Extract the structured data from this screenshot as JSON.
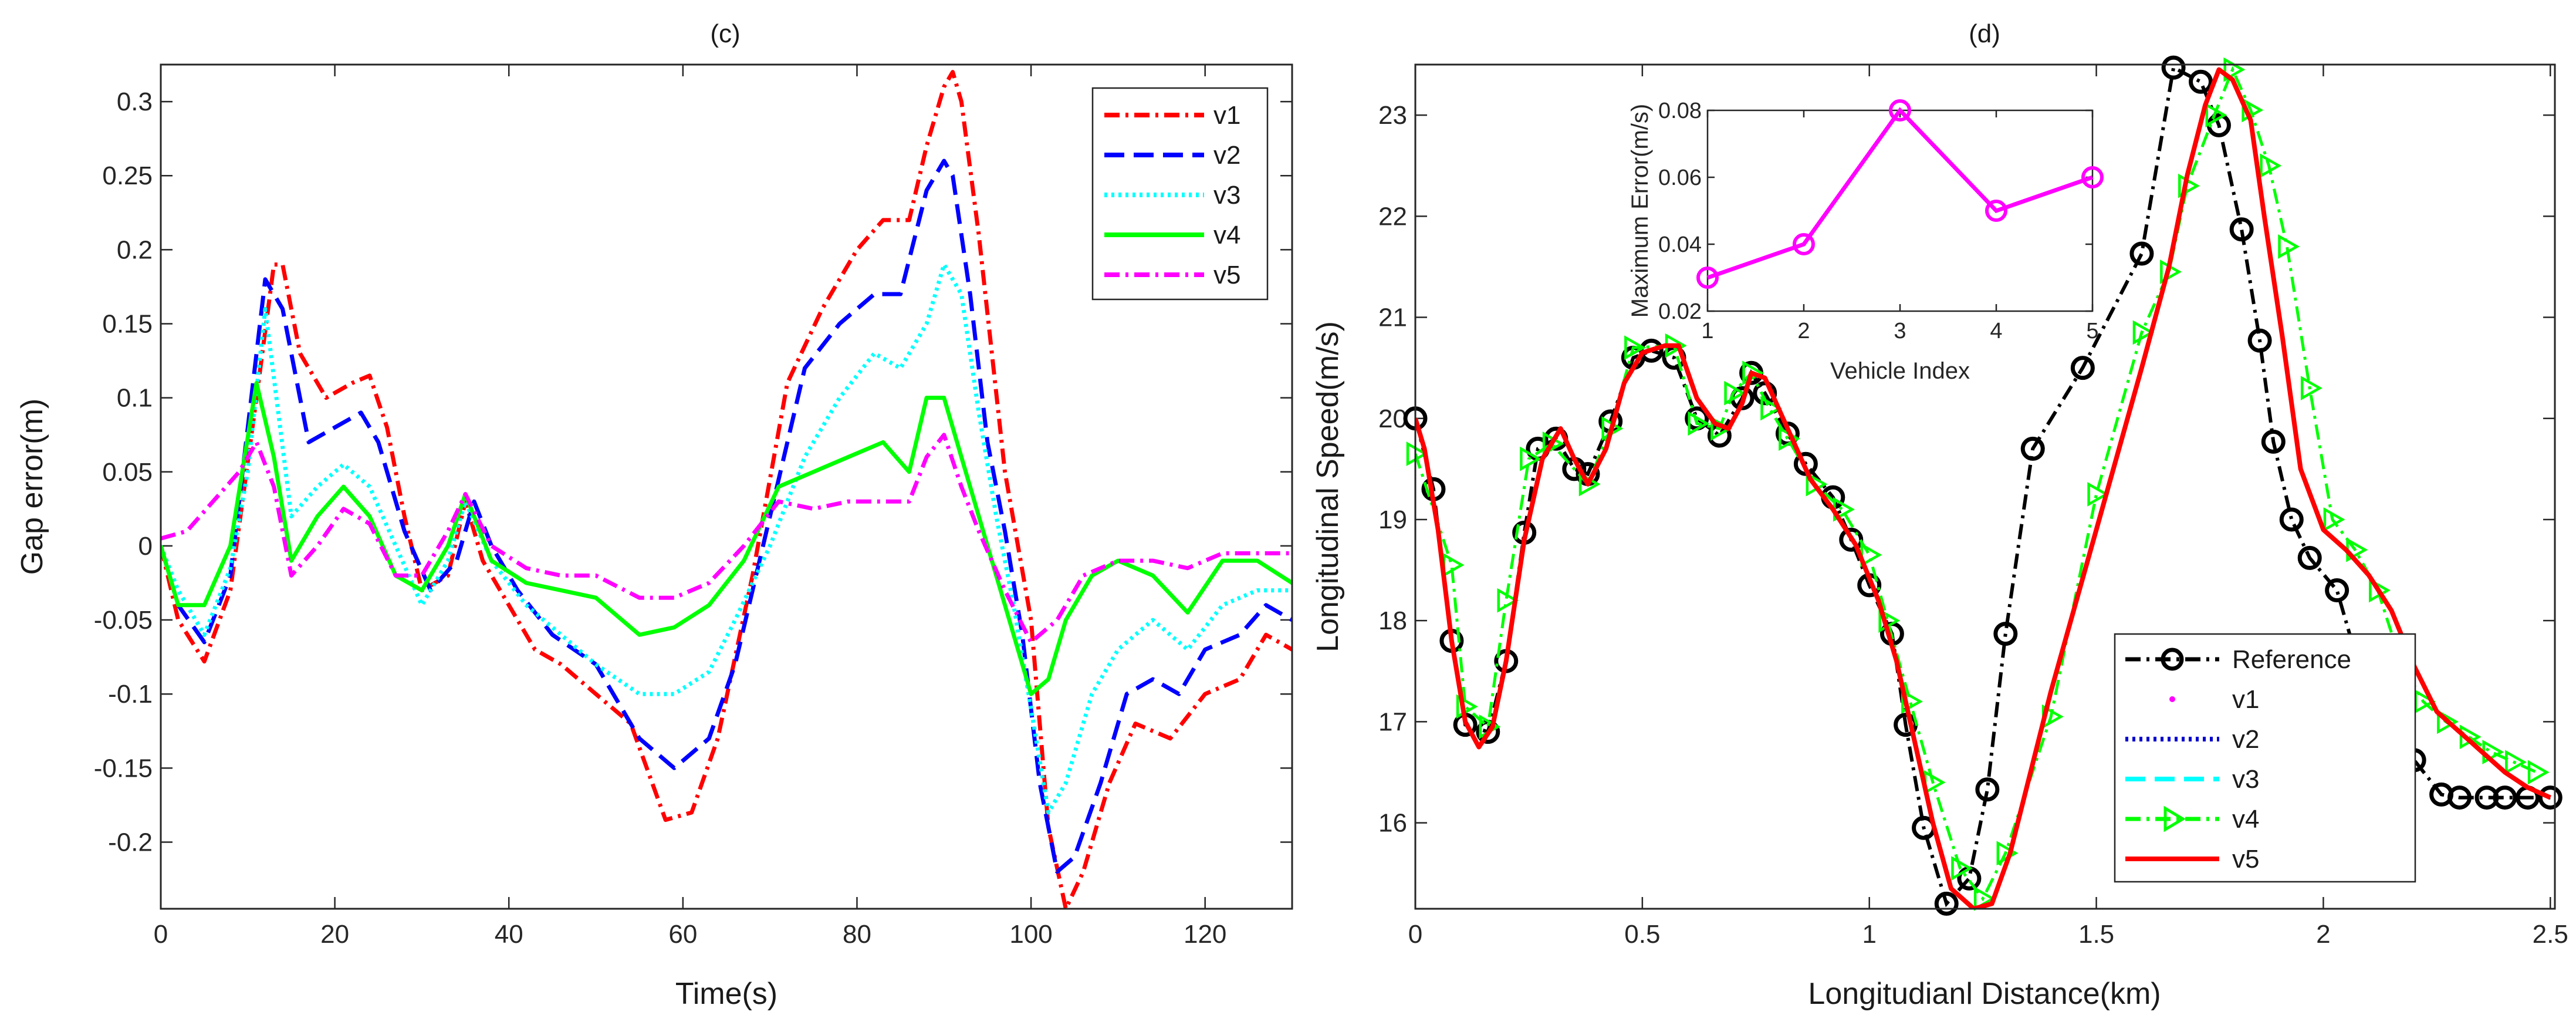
{
  "chart_data": [
    {
      "type": "line",
      "title": "(c)",
      "xlabel": "Time(s)",
      "ylabel": "Gap error(m)",
      "xlim": [
        0,
        130
      ],
      "ylim": [
        -0.245,
        0.325
      ],
      "xticks": [
        0,
        20,
        40,
        60,
        80,
        100,
        120
      ],
      "xtick_labels": [
        "0",
        "20",
        "40",
        "60",
        "80",
        "100",
        "120"
      ],
      "yticks": [
        -0.2,
        -0.15,
        -0.1,
        -0.05,
        0,
        0.05,
        0.1,
        0.15,
        0.2,
        0.25,
        0.3
      ],
      "ytick_labels": [
        "-0.2",
        "-0.15",
        "-0.1",
        "-0.05",
        "0",
        "0.05",
        "0.1",
        "0.15",
        "0.2",
        "0.25",
        "0.3"
      ],
      "legend_position": "top-right",
      "series": [
        {
          "name": "v1",
          "color": "#ff0000",
          "dash": "dashdot",
          "x": [
            0,
            2,
            5,
            8,
            11,
            13,
            14,
            16,
            19,
            22,
            24,
            26,
            28,
            30,
            33,
            35,
            37,
            40,
            43,
            46,
            50,
            54,
            58,
            61,
            64,
            68,
            72,
            76,
            80,
            83,
            86,
            88,
            90,
            91,
            92,
            94,
            97,
            100,
            102,
            104,
            106,
            109,
            112,
            116,
            120,
            124,
            127,
            130
          ],
          "y": [
            0,
            -0.05,
            -0.078,
            -0.03,
            0.1,
            0.19,
            0.19,
            0.13,
            0.1,
            0.11,
            0.115,
            0.08,
            0.02,
            -0.03,
            -0.02,
            0.03,
            -0.01,
            -0.04,
            -0.07,
            -0.08,
            -0.1,
            -0.12,
            -0.185,
            -0.18,
            -0.13,
            -0.02,
            0.11,
            0.16,
            0.2,
            0.22,
            0.22,
            0.27,
            0.31,
            0.32,
            0.3,
            0.21,
            0.05,
            -0.05,
            -0.19,
            -0.245,
            -0.22,
            -0.16,
            -0.12,
            -0.13,
            -0.1,
            -0.09,
            -0.06,
            -0.07
          ]
        },
        {
          "name": "v2",
          "color": "#0000ff",
          "dash": "dash",
          "x": [
            0,
            2,
            5,
            8,
            10,
            12,
            14,
            17,
            20,
            23,
            25,
            28,
            31,
            34,
            36,
            38,
            41,
            45,
            50,
            55,
            59,
            63,
            66,
            70,
            74,
            78,
            82,
            85,
            88,
            90,
            91,
            93,
            95,
            97,
            99,
            101,
            103,
            105,
            108,
            111,
            114,
            117,
            120,
            124,
            127,
            130
          ],
          "y": [
            0,
            -0.04,
            -0.065,
            -0.02,
            0.08,
            0.18,
            0.16,
            0.07,
            0.08,
            0.09,
            0.07,
            0.01,
            -0.03,
            -0.01,
            0.03,
            0,
            -0.03,
            -0.06,
            -0.08,
            -0.13,
            -0.15,
            -0.13,
            -0.08,
            0.02,
            0.12,
            0.15,
            0.17,
            0.17,
            0.24,
            0.26,
            0.25,
            0.17,
            0.07,
            0.01,
            -0.06,
            -0.16,
            -0.22,
            -0.21,
            -0.16,
            -0.1,
            -0.09,
            -0.1,
            -0.07,
            -0.06,
            -0.04,
            -0.05
          ]
        },
        {
          "name": "v3",
          "color": "#00ffff",
          "dash": "dot",
          "x": [
            0,
            2,
            5,
            8,
            10,
            12,
            15,
            18,
            21,
            24,
            27,
            30,
            33,
            35,
            38,
            42,
            46,
            50,
            55,
            59,
            63,
            66,
            70,
            74,
            78,
            82,
            85,
            88,
            90,
            92,
            94,
            96,
            98,
            100,
            102,
            104,
            107,
            110,
            114,
            118,
            122,
            126,
            130
          ],
          "y": [
            0,
            -0.03,
            -0.06,
            -0.015,
            0.05,
            0.16,
            0.02,
            0.04,
            0.055,
            0.04,
            0,
            -0.04,
            -0.01,
            0.03,
            -0.01,
            -0.04,
            -0.06,
            -0.08,
            -0.1,
            -0.1,
            -0.085,
            -0.05,
            0,
            0.06,
            0.1,
            0.13,
            0.12,
            0.15,
            0.19,
            0.17,
            0.09,
            0.02,
            -0.04,
            -0.11,
            -0.18,
            -0.16,
            -0.1,
            -0.07,
            -0.05,
            -0.07,
            -0.04,
            -0.03,
            -0.03
          ]
        },
        {
          "name": "v4",
          "color": "#00ff00",
          "dash": "solid",
          "x": [
            0,
            2,
            5,
            8,
            11,
            13,
            15,
            18,
            21,
            24,
            27,
            30,
            33,
            35,
            38,
            42,
            46,
            50,
            55,
            59,
            63,
            67,
            71,
            75,
            79,
            83,
            86,
            88,
            90,
            92,
            94,
            97,
            100,
            102,
            104,
            107,
            110,
            114,
            118,
            122,
            126,
            130
          ],
          "y": [
            0,
            -0.04,
            -0.04,
            0,
            0.11,
            0.06,
            -0.01,
            0.02,
            0.04,
            0.02,
            -0.02,
            -0.03,
            0,
            0.035,
            -0.01,
            -0.025,
            -0.03,
            -0.035,
            -0.06,
            -0.055,
            -0.04,
            -0.01,
            0.04,
            0.05,
            0.06,
            0.07,
            0.05,
            0.1,
            0.1,
            0.06,
            0.02,
            -0.04,
            -0.1,
            -0.09,
            -0.05,
            -0.02,
            -0.01,
            -0.02,
            -0.045,
            -0.01,
            -0.01,
            -0.025
          ]
        },
        {
          "name": "v5",
          "color": "#ff00ff",
          "dash": "dashdot",
          "x": [
            0,
            3,
            6,
            9,
            11,
            13,
            15,
            18,
            21,
            24,
            27,
            30,
            33,
            35,
            38,
            42,
            46,
            50,
            55,
            59,
            63,
            67,
            71,
            75,
            79,
            83,
            86,
            88,
            90,
            92,
            94,
            97,
            100,
            103,
            106,
            110,
            114,
            118,
            122,
            126,
            130
          ],
          "y": [
            0.005,
            0.01,
            0.03,
            0.05,
            0.07,
            0.04,
            -0.02,
            0,
            0.025,
            0.015,
            -0.02,
            -0.02,
            0.01,
            0.035,
            0,
            -0.015,
            -0.02,
            -0.02,
            -0.035,
            -0.035,
            -0.025,
            0,
            0.03,
            0.025,
            0.03,
            0.03,
            0.03,
            0.06,
            0.075,
            0.04,
            0.01,
            -0.03,
            -0.065,
            -0.05,
            -0.02,
            -0.01,
            -0.01,
            -0.015,
            -0.005,
            -0.005,
            -0.005
          ]
        }
      ]
    },
    {
      "type": "line",
      "title": "(d)",
      "xlabel": "Longitudianl Distance(km)",
      "ylabel": "Longitudinal Speed(m/s)",
      "xlim": [
        0,
        2.51
      ],
      "ylim": [
        15.15,
        23.5
      ],
      "xticks": [
        0,
        0.5,
        1,
        1.5,
        2,
        2.5
      ],
      "xtick_labels": [
        "0",
        "0.5",
        "1",
        "1.5",
        "2",
        "2.5"
      ],
      "yticks": [
        16,
        17,
        18,
        19,
        20,
        21,
        22,
        23
      ],
      "ytick_labels": [
        "16",
        "17",
        "18",
        "19",
        "20",
        "21",
        "22",
        "23"
      ],
      "legend_position": "bottom-right",
      "reference": {
        "x": [
          0,
          0.04,
          0.08,
          0.11,
          0.16,
          0.2,
          0.24,
          0.27,
          0.31,
          0.35,
          0.38,
          0.43,
          0.48,
          0.52,
          0.57,
          0.62,
          0.67,
          0.72,
          0.74,
          0.77,
          0.82,
          0.86,
          0.92,
          0.96,
          1.0,
          1.05,
          1.08,
          1.12,
          1.17,
          1.22,
          1.26,
          1.3,
          1.36,
          1.47,
          1.6,
          1.67,
          1.73,
          1.77,
          1.82,
          1.86,
          1.89,
          1.93,
          1.97,
          2.03,
          2.07,
          2.11,
          2.16,
          2.2,
          2.26,
          2.3,
          2.36,
          2.4,
          2.45,
          2.5
        ],
        "y": [
          20.0,
          19.3,
          17.8,
          16.97,
          16.9,
          17.6,
          18.87,
          19.7,
          19.8,
          19.5,
          19.45,
          19.97,
          20.6,
          20.67,
          20.6,
          20.0,
          19.83,
          20.2,
          20.45,
          20.25,
          19.85,
          19.55,
          19.22,
          18.8,
          18.35,
          17.87,
          16.97,
          15.95,
          15.2,
          15.45,
          16.33,
          17.87,
          19.7,
          20.5,
          21.63,
          23.47,
          23.33,
          22.9,
          21.87,
          20.77,
          19.77,
          19.0,
          18.62,
          18.3,
          17.68,
          17.2,
          16.87,
          16.62,
          16.28,
          16.25,
          16.25,
          16.25,
          16.25,
          16.25
        ]
      },
      "v5_line": {
        "x": [
          0,
          0.02,
          0.05,
          0.08,
          0.11,
          0.14,
          0.17,
          0.2,
          0.24,
          0.28,
          0.32,
          0.35,
          0.38,
          0.42,
          0.46,
          0.5,
          0.55,
          0.58,
          0.62,
          0.66,
          0.69,
          0.72,
          0.74,
          0.77,
          0.82,
          0.87,
          0.92,
          0.97,
          1.02,
          1.06,
          1.1,
          1.14,
          1.18,
          1.23,
          1.27,
          1.31,
          1.4,
          1.5,
          1.6,
          1.66,
          1.7,
          1.74,
          1.77,
          1.8,
          1.84,
          1.87,
          1.91,
          1.95,
          2.0,
          2.05,
          2.1,
          2.15,
          2.2,
          2.25,
          2.3,
          2.35,
          2.4,
          2.45,
          2.5
        ],
        "y": [
          20.0,
          19.7,
          18.9,
          17.8,
          17.0,
          16.75,
          16.95,
          17.6,
          18.8,
          19.6,
          19.9,
          19.6,
          19.35,
          19.7,
          20.35,
          20.65,
          20.72,
          20.72,
          20.2,
          19.95,
          19.9,
          20.15,
          20.45,
          20.4,
          19.9,
          19.4,
          19.1,
          18.75,
          18.2,
          17.6,
          16.8,
          16.0,
          15.35,
          15.15,
          15.2,
          15.7,
          17.3,
          18.9,
          20.5,
          21.5,
          22.4,
          23.1,
          23.45,
          23.35,
          22.95,
          22.0,
          20.8,
          19.5,
          18.9,
          18.7,
          18.45,
          18.1,
          17.55,
          17.1,
          16.9,
          16.7,
          16.5,
          16.35,
          16.25
        ]
      },
      "v4_markers": {
        "x": [
          0.0,
          0.08,
          0.11,
          0.16,
          0.2,
          0.25,
          0.3,
          0.38,
          0.43,
          0.48,
          0.57,
          0.62,
          0.67,
          0.7,
          0.74,
          0.78,
          0.82,
          0.88,
          0.94,
          1.0,
          1.04,
          1.09,
          1.14,
          1.2,
          1.25,
          1.3,
          1.4,
          1.5,
          1.6,
          1.66,
          1.7,
          1.76,
          1.8,
          1.84,
          1.88,
          1.92,
          1.97,
          2.02,
          2.07,
          2.12,
          2.17,
          2.22,
          2.27,
          2.32,
          2.37,
          2.42,
          2.47
        ],
        "y": [
          19.65,
          18.55,
          17.15,
          16.95,
          18.2,
          19.6,
          19.75,
          19.35,
          19.9,
          20.7,
          20.72,
          19.95,
          19.9,
          20.25,
          20.45,
          20.1,
          19.8,
          19.35,
          19.1,
          18.65,
          18.0,
          17.2,
          16.4,
          15.55,
          15.25,
          15.7,
          17.05,
          19.25,
          20.85,
          21.45,
          22.3,
          23.0,
          23.45,
          23.05,
          22.5,
          21.7,
          20.3,
          19.0,
          18.7,
          18.3,
          17.6,
          17.2,
          17.0,
          16.85,
          16.7,
          16.6,
          16.5
        ]
      },
      "series_names": [
        "Reference",
        "v1",
        "v2",
        "v3",
        "v4",
        "v5"
      ],
      "series_colors": [
        "#000000",
        "#ff00ff",
        "#0000cd",
        "#00ffff",
        "#00ff00",
        "#ff0000"
      ],
      "inset": {
        "type": "line",
        "xlabel": "Vehicle Index",
        "ylabel": "Maximum Error(m/s)",
        "x": [
          1,
          2,
          3,
          4,
          5
        ],
        "y": [
          0.03,
          0.04,
          0.08,
          0.05,
          0.06
        ],
        "xlim": [
          1,
          5
        ],
        "ylim": [
          0.02,
          0.08
        ],
        "xticks": [
          1,
          2,
          3,
          4,
          5
        ],
        "xtick_labels": [
          "1",
          "2",
          "3",
          "4",
          "5"
        ],
        "yticks": [
          0.02,
          0.04,
          0.06,
          0.08
        ],
        "ytick_labels": [
          "0.02",
          "0.04",
          "0.06",
          "0.08"
        ],
        "color": "#ff00ff"
      }
    }
  ]
}
